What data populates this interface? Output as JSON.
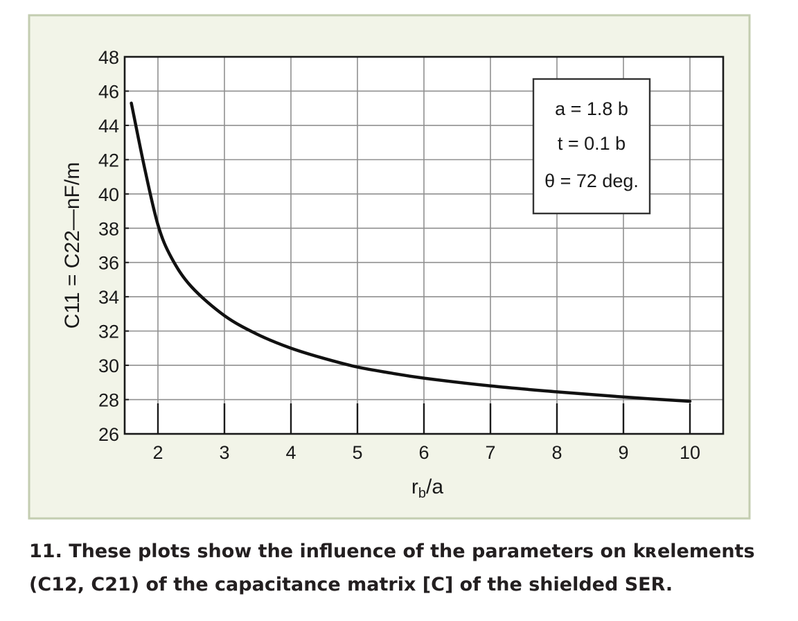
{
  "chart_data": {
    "type": "line",
    "xlabel": "r_b/a",
    "ylabel": "C11 = C22—nF/m",
    "xlim": [
      1.5,
      10.5
    ],
    "ylim": [
      26,
      48
    ],
    "x_ticks": [
      "2",
      "3",
      "4",
      "5",
      "6",
      "7",
      "8",
      "9",
      "10"
    ],
    "y_ticks": [
      "26",
      "28",
      "30",
      "32",
      "34",
      "36",
      "38",
      "40",
      "42",
      "44",
      "46",
      "48"
    ],
    "grid": true,
    "series": [
      {
        "x": [
          1.6,
          1.8,
          2.0,
          2.2,
          2.5,
          3.0,
          3.5,
          4.0,
          4.5,
          5.0,
          5.5,
          6.0,
          7.0,
          8.0,
          9.0,
          10.0
        ],
        "y": [
          45.3,
          41.5,
          38.2,
          36.3,
          34.6,
          32.9,
          31.8,
          31.0,
          30.4,
          29.9,
          29.55,
          29.25,
          28.8,
          28.45,
          28.15,
          27.9
        ],
        "color": "#111111"
      }
    ],
    "annotation": {
      "lines": [
        "a = 1.8 b",
        "t = 0.1 b",
        "θ = 72 deg."
      ]
    }
  },
  "caption": {
    "line1": "11. These plots show the influence of the parameters on kʀelements",
    "line2": "(C12, C21) of the capacitance matrix [C] of the shielded SER."
  },
  "colors": {
    "panel_bg": "#f2f4e8",
    "panel_border": "#c3cdb0",
    "plot_bg": "#ffffff",
    "grid": "#8f8f8f",
    "axis": "#1a1a1a",
    "curve": "#111111"
  }
}
